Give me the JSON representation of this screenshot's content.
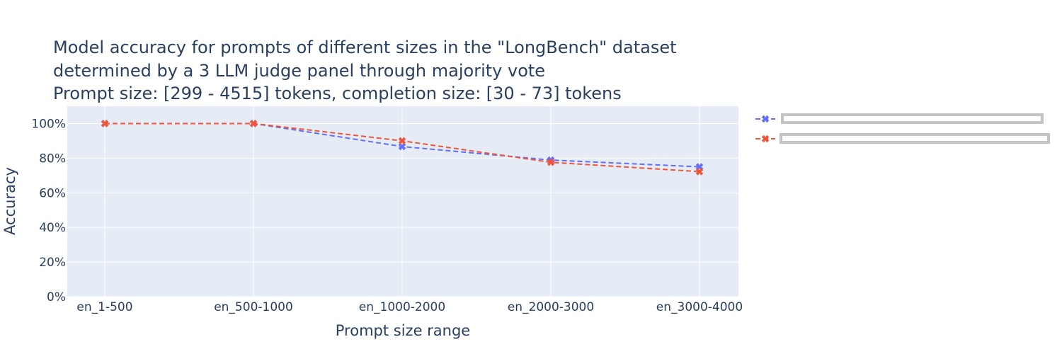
{
  "chart_data": {
    "type": "line",
    "title_lines": [
      "Model accuracy for prompts of different sizes in the \"LongBench\" dataset",
      "determined by a 3 LLM judge panel through majority vote",
      "Prompt size: [299 - 4515] tokens, completion size: [30 - 73] tokens"
    ],
    "xlabel": "Prompt size range",
    "ylabel": "Accuracy",
    "categories": [
      "en_1-500",
      "en_500-1000",
      "en_1000-2000",
      "en_2000-3000",
      "en_3000-4000"
    ],
    "ylim": [
      0,
      110
    ],
    "yticks": [
      0,
      20,
      40,
      60,
      80,
      100
    ],
    "ytick_labels": [
      "0%",
      "20%",
      "40%",
      "60%",
      "80%",
      "100%"
    ],
    "grid": true,
    "legend_position": "right",
    "series": [
      {
        "color": "#636efa",
        "line_style": "dash",
        "marker": "x",
        "values": [
          100,
          100,
          86.7,
          78.9,
          75.0
        ]
      },
      {
        "color": "#ef553b",
        "line_style": "dash",
        "marker": "x",
        "values": [
          100,
          100,
          90.0,
          77.6,
          72.2
        ]
      }
    ],
    "colors": {
      "plot_background": "#e5ecf6",
      "grid": "#ffffff",
      "text": "#2a3f5f",
      "legend_redaction": "#c4c4c4"
    }
  }
}
